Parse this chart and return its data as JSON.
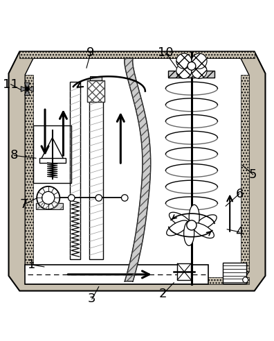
{
  "bg_color": "#ffffff",
  "wall_color": "#c8c0b0",
  "label_fontsize": 13,
  "lw": 1.0,
  "labels": {
    "1": [
      0.115,
      0.155,
      0.16,
      0.148
    ],
    "2": [
      0.595,
      0.048,
      0.635,
      0.09
    ],
    "3": [
      0.335,
      0.03,
      0.36,
      0.075
    ],
    "4": [
      0.875,
      0.275,
      0.83,
      0.285
    ],
    "5": [
      0.925,
      0.485,
      0.885,
      0.52
    ],
    "6": [
      0.875,
      0.415,
      0.825,
      0.37
    ],
    "7": [
      0.085,
      0.375,
      0.135,
      0.4
    ],
    "8": [
      0.05,
      0.555,
      0.13,
      0.545
    ],
    "9": [
      0.33,
      0.93,
      0.315,
      0.875
    ],
    "10": [
      0.605,
      0.93,
      0.645,
      0.875
    ],
    "11": [
      0.038,
      0.815,
      0.075,
      0.795
    ]
  }
}
